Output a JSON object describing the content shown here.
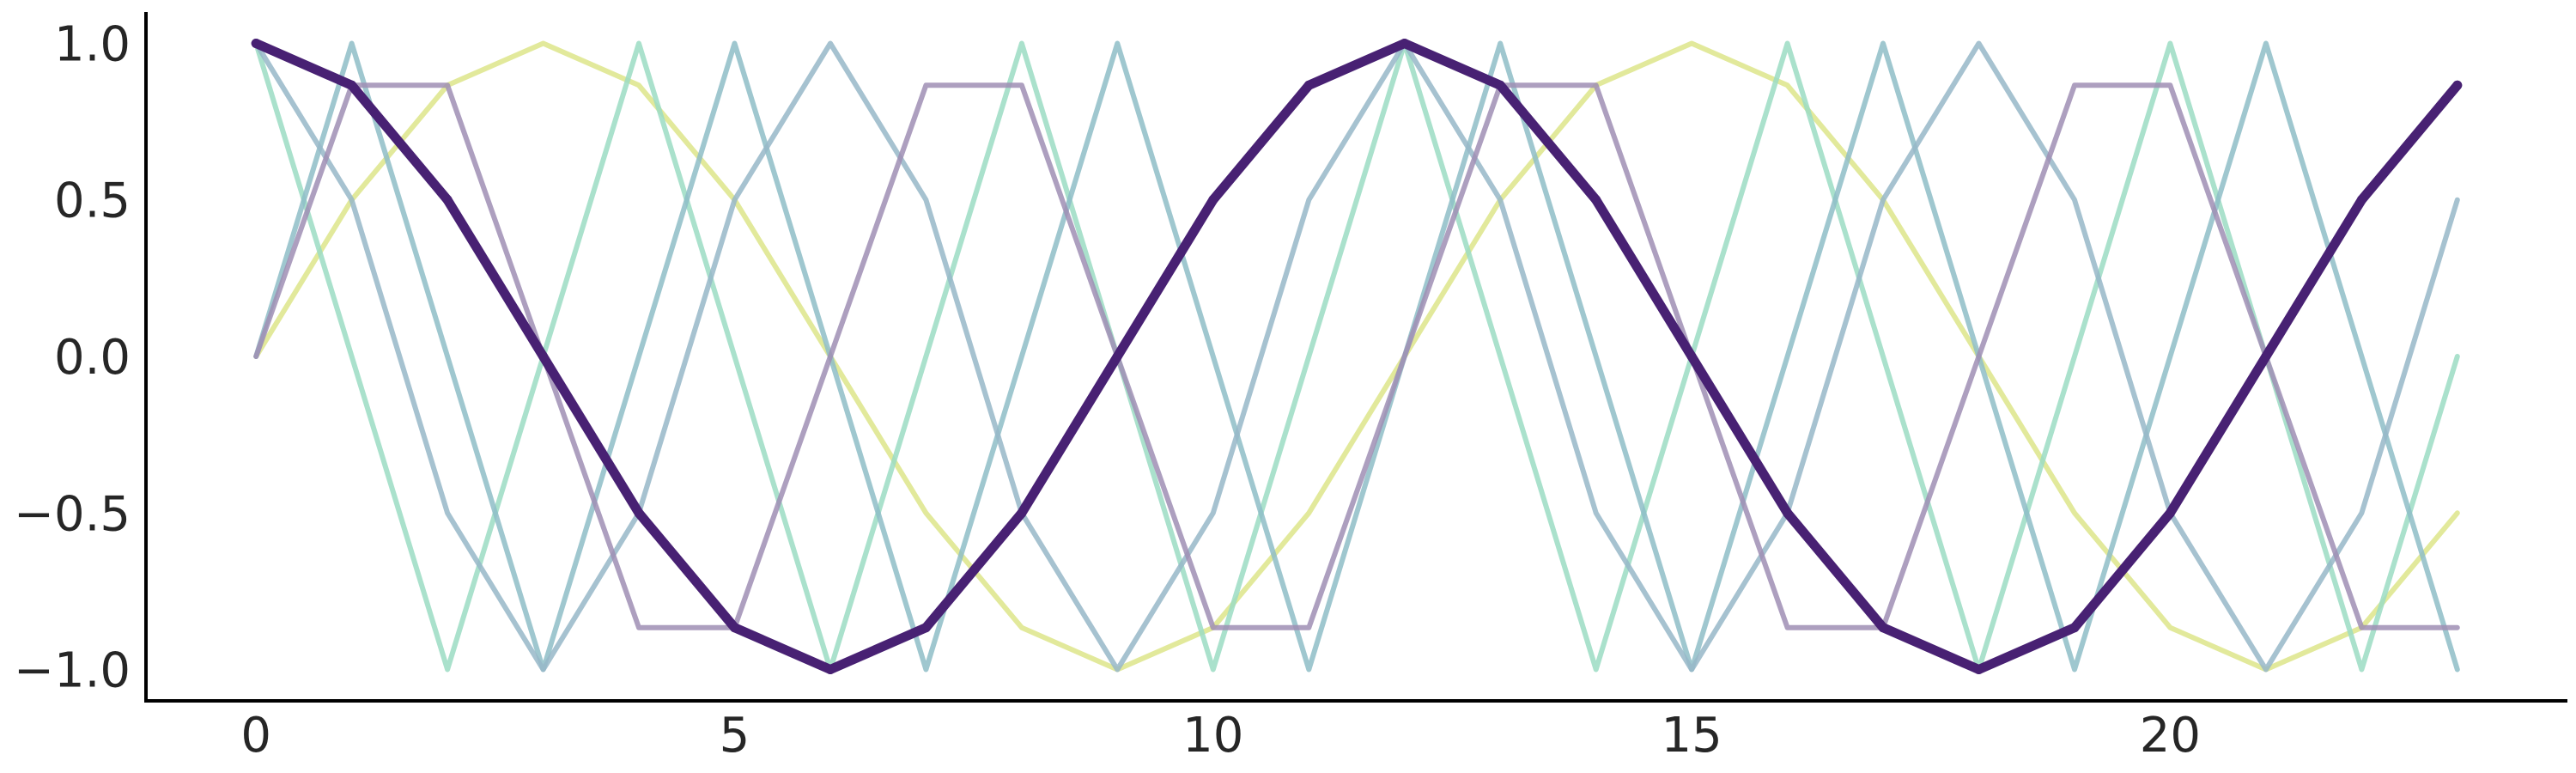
{
  "chart_data": {
    "type": "line",
    "title": "",
    "xlabel": "",
    "ylabel": "",
    "xlim": [
      -1.15,
      24.15
    ],
    "ylim": [
      -1.1,
      1.1
    ],
    "grid": false,
    "legend": "none",
    "x_ticks": [
      0,
      5,
      10,
      15,
      20
    ],
    "x_tick_labels": [
      "0",
      "5",
      "10",
      "15",
      "20"
    ],
    "y_ticks": [
      1.0,
      0.5,
      0.0,
      -0.5,
      -1.0
    ],
    "y_tick_labels": [
      "1.0",
      "0.5",
      "0.0",
      "−0.5",
      "−1.0"
    ],
    "x": [
      0,
      1,
      2,
      3,
      4,
      5,
      6,
      7,
      8,
      9,
      10,
      11,
      12,
      13,
      14,
      15,
      16,
      17,
      18,
      19,
      20,
      21,
      22,
      23
    ],
    "series": [
      {
        "color": "#dde58a",
        "values": [
          0,
          0.5,
          0.866,
          1,
          0.866,
          0.5,
          0,
          -0.5,
          -0.866,
          -1,
          -0.866,
          -0.5,
          0,
          0.5,
          0.866,
          1,
          0.866,
          0.5,
          0,
          -0.5,
          -0.866,
          -1,
          -0.866,
          -0.5
        ]
      },
      {
        "color": "#9bdcc3",
        "values": [
          1,
          0,
          -1,
          0,
          1,
          0,
          -1,
          0,
          1,
          0,
          -1,
          0,
          1,
          0,
          -1,
          0,
          1,
          0,
          -1,
          0,
          1,
          0,
          -1,
          0
        ]
      },
      {
        "color": "#8ebdc7",
        "values": [
          0,
          1,
          0,
          -1,
          0,
          1,
          0,
          -1,
          0,
          1,
          0,
          -1,
          0,
          1,
          0,
          -1,
          0,
          1,
          0,
          -1,
          0,
          1,
          0,
          -1
        ]
      },
      {
        "color": "#97b7c8",
        "values": [
          1,
          0.5,
          -0.5,
          -1,
          -0.5,
          0.5,
          1,
          0.5,
          -0.5,
          -1,
          -0.5,
          0.5,
          1,
          0.5,
          -0.5,
          -1,
          -0.5,
          0.5,
          1,
          0.5,
          -0.5,
          -1,
          -0.5,
          0.5
        ]
      },
      {
        "color": "#9f8eb4",
        "values": [
          0,
          0.866,
          0.866,
          0,
          -0.866,
          -0.866,
          0,
          0.866,
          0.866,
          0,
          -0.866,
          -0.866,
          0,
          0.866,
          0.866,
          0,
          -0.866,
          -0.866,
          0,
          0.866,
          0.866,
          0,
          -0.866,
          -0.866
        ]
      },
      {
        "color": "#482173",
        "emphasis": true,
        "values": [
          1,
          0.866,
          0.5,
          0,
          -0.5,
          -0.866,
          -1,
          -0.866,
          -0.5,
          0,
          0.5,
          0.866,
          1,
          0.866,
          0.5,
          0,
          -0.5,
          -0.866,
          -1,
          -0.866,
          -0.5,
          0,
          0.5,
          0.866
        ]
      }
    ]
  }
}
